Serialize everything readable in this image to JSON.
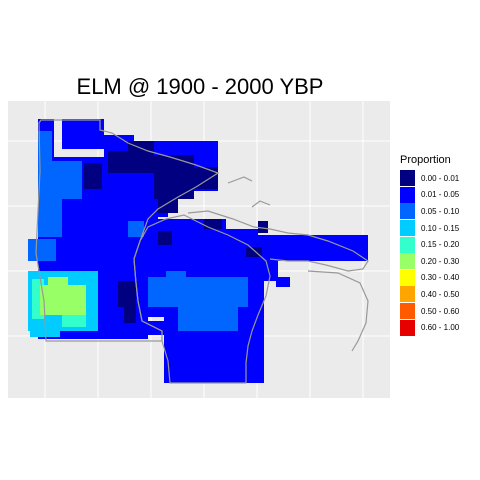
{
  "title": "ELM @ 1900 - 2000 YBP",
  "legend": {
    "title": "Proportion",
    "entries": [
      {
        "label": "0.00 - 0.01",
        "color": "#000080"
      },
      {
        "label": "0.01 - 0.05",
        "color": "#0000ff"
      },
      {
        "label": "0.05 - 0.10",
        "color": "#0066ff"
      },
      {
        "label": "0.10 - 0.15",
        "color": "#00ccff"
      },
      {
        "label": "0.15 - 0.20",
        "color": "#33ffcc"
      },
      {
        "label": "0.20 - 0.30",
        "color": "#99ff66"
      },
      {
        "label": "0.30 - 0.40",
        "color": "#ffff00"
      },
      {
        "label": "0.40 - 0.50",
        "color": "#ffa500"
      },
      {
        "label": "0.50 - 0.60",
        "color": "#ff5a00"
      },
      {
        "label": "0.60 - 1.00",
        "color": "#e60000"
      }
    ]
  },
  "map": {
    "region": "Upper Midwest (Minnesota, Wisconsin, Upper Michigan)",
    "panel_background": "#ebebeb",
    "outline_color": "#999999",
    "dominant_class": "0.01 - 0.05",
    "high_class": "0.20 - 0.30"
  }
}
